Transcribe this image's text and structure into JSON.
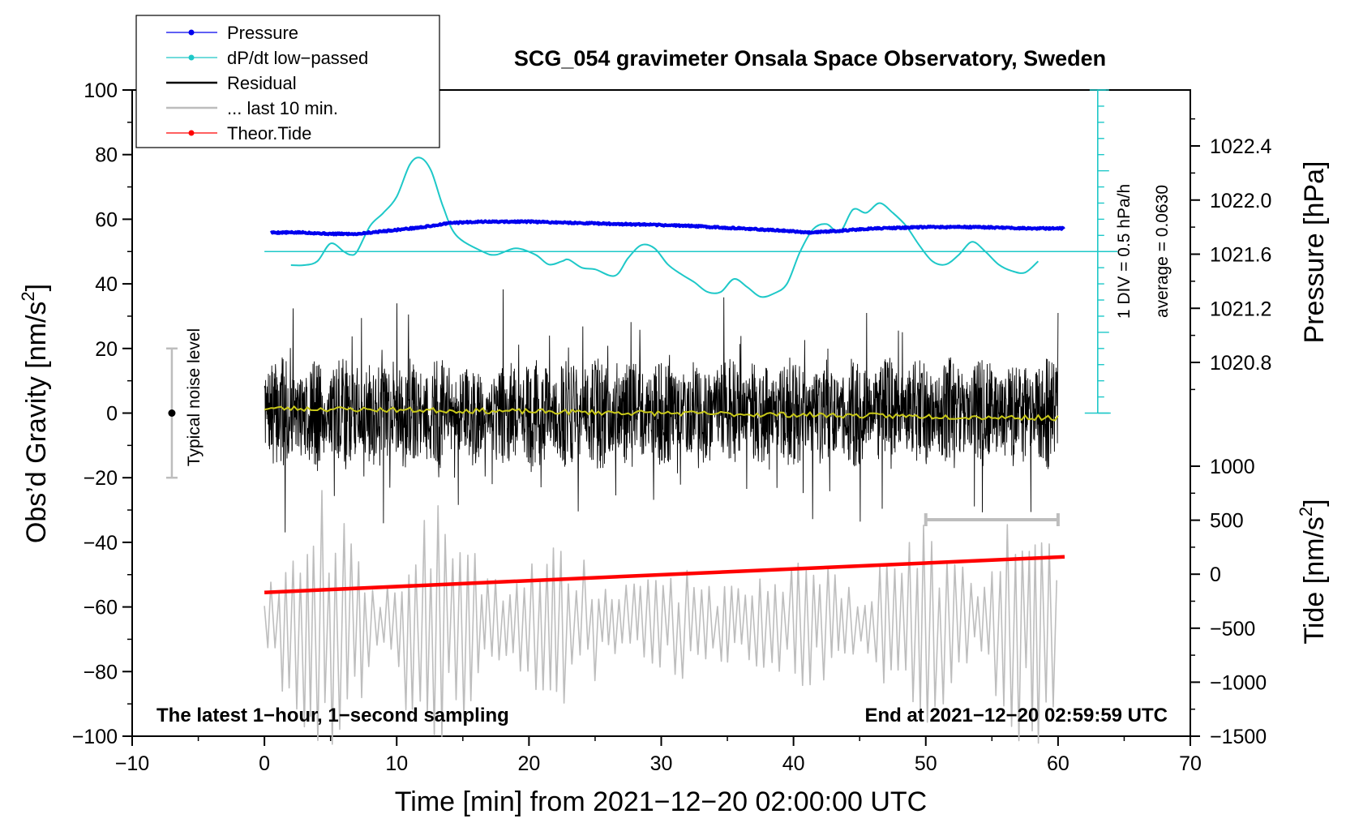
{
  "chart_data": {
    "type": "line",
    "title": "SCG_054 gravimeter Onsala Space Observatory, Sweden",
    "xlabel": "Time [min] from 2021−12−20 02:00:00 UTC",
    "ylabel_left": "Obs’d Gravity [nm/s",
    "ylabel_left_sup": "2",
    "ylabel_left_end": "]",
    "ylabel_right_top": "Pressure [hPa]",
    "ylabel_right_bottom": "Tide [nm/s",
    "ylabel_right_bottom_sup": "2",
    "ylabel_right_bottom_end": "]",
    "xlim": [
      -10,
      70
    ],
    "ylim": [
      -100,
      100
    ],
    "pressure_axis_range": [
      1020.4,
      1022.8
    ],
    "tide_axis_range": [
      -1500,
      1000
    ],
    "x_ticks": [
      "−10",
      "0",
      "10",
      "20",
      "30",
      "40",
      "50",
      "60",
      "70"
    ],
    "y_ticks": [
      "100",
      "80",
      "60",
      "40",
      "20",
      "0",
      "−20",
      "−40",
      "−60",
      "−80",
      "−100"
    ],
    "pressure_ticks": [
      "1022.4",
      "1022.0",
      "1021.6",
      "1021.2",
      "1020.8"
    ],
    "tide_ticks": [
      "1000",
      "500",
      "0",
      "−500",
      "−1000",
      "−1500"
    ],
    "legend": [
      {
        "label": "Pressure",
        "color": "#0000ee",
        "marker": true
      },
      {
        "label": "dP/dt low−passed",
        "color": "#1ec8c8",
        "marker": true
      },
      {
        "label": "Residual",
        "color": "#000000",
        "marker": false
      },
      {
        "label": "... last 10 min.",
        "color": "#bdbdbd",
        "marker": false
      },
      {
        "label": "Theor.Tide",
        "color": "#ff0000",
        "marker": true
      }
    ],
    "series": [
      {
        "name": "Pressure",
        "color": "#0000ee",
        "units": "hPa",
        "points": [
          [
            0.5,
            1021.76
          ],
          [
            3,
            1021.76
          ],
          [
            5,
            1021.75
          ],
          [
            7,
            1021.75
          ],
          [
            8,
            1021.76
          ],
          [
            10,
            1021.78
          ],
          [
            12,
            1021.8
          ],
          [
            14,
            1021.83
          ],
          [
            16,
            1021.84
          ],
          [
            20,
            1021.84
          ],
          [
            24,
            1021.83
          ],
          [
            28,
            1021.82
          ],
          [
            32,
            1021.81
          ],
          [
            36,
            1021.79
          ],
          [
            40,
            1021.77
          ],
          [
            41,
            1021.76
          ],
          [
            43,
            1021.77
          ],
          [
            46,
            1021.79
          ],
          [
            50,
            1021.8
          ],
          [
            54,
            1021.8
          ],
          [
            58,
            1021.79
          ],
          [
            60.5,
            1021.79
          ]
        ]
      },
      {
        "name": "dP/dt low−passed",
        "color": "#1ec8c8",
        "units": "hPa/h",
        "zero_line": 50,
        "points": [
          [
            2,
            45.8
          ],
          [
            3,
            45.8
          ],
          [
            4,
            47
          ],
          [
            5,
            52.5
          ],
          [
            6,
            50
          ],
          [
            6.5,
            49
          ],
          [
            7,
            50
          ],
          [
            8,
            58
          ],
          [
            9,
            62
          ],
          [
            10,
            67
          ],
          [
            11,
            77
          ],
          [
            11.8,
            79
          ],
          [
            12.6,
            75
          ],
          [
            13.5,
            64
          ],
          [
            14.5,
            55
          ],
          [
            16.5,
            50
          ],
          [
            17.5,
            49
          ],
          [
            19,
            51
          ],
          [
            20.5,
            49
          ],
          [
            21.5,
            46
          ],
          [
            22.5,
            47
          ],
          [
            23,
            47.5
          ],
          [
            24,
            45
          ],
          [
            25,
            44.5
          ],
          [
            26.5,
            42.5
          ],
          [
            27.5,
            48
          ],
          [
            28.5,
            52
          ],
          [
            29.5,
            51
          ],
          [
            30.5,
            46
          ],
          [
            31.5,
            43
          ],
          [
            32.5,
            40.5
          ],
          [
            33.5,
            37.5
          ],
          [
            34.5,
            37.5
          ],
          [
            35.5,
            41.5
          ],
          [
            36.5,
            39
          ],
          [
            37.5,
            36
          ],
          [
            38.5,
            37
          ],
          [
            39.5,
            40
          ],
          [
            40.5,
            50
          ],
          [
            41.5,
            57
          ],
          [
            42.5,
            58.5
          ],
          [
            43.5,
            56
          ],
          [
            44.5,
            63
          ],
          [
            45.5,
            62
          ],
          [
            46.5,
            65
          ],
          [
            47.5,
            62
          ],
          [
            48.5,
            58
          ],
          [
            49.5,
            52
          ],
          [
            50.5,
            47
          ],
          [
            51.5,
            46
          ],
          [
            52.5,
            49
          ],
          [
            53.5,
            53
          ],
          [
            54.5,
            50
          ],
          [
            55.5,
            46
          ],
          [
            56.5,
            44
          ],
          [
            57.5,
            43.5
          ],
          [
            58.5,
            47
          ]
        ]
      },
      {
        "name": "Residual",
        "color": "#000000",
        "units": "nm/s²",
        "x_range": [
          0,
          60
        ],
        "typical_amplitude": 14,
        "max_amplitude": 45,
        "seed": 7
      },
      {
        "name": "Residual (smoothed)",
        "color": "#c8c819",
        "units": "nm/s²",
        "points": [
          [
            0,
            1.5
          ],
          [
            10,
            1.0
          ],
          [
            20,
            0.5
          ],
          [
            30,
            0.0
          ],
          [
            40,
            -0.5
          ],
          [
            50,
            -1.0
          ],
          [
            60,
            -1.5
          ]
        ]
      },
      {
        "name": "... last 10 min.",
        "color": "#bdbdbd",
        "units": "nm/s² (expanded)",
        "x_range": [
          0,
          60
        ],
        "center": -65,
        "max_amplitude": 42,
        "seed": 11
      },
      {
        "name": "Theor.Tide",
        "color": "#ff0000",
        "units": "nm/s²",
        "points": [
          [
            0,
            -55.5
          ],
          [
            60.5,
            -44.5
          ]
        ]
      }
    ],
    "last10_bracket": {
      "x_start": 50,
      "x_end": 60,
      "y": -33
    },
    "noise_bar": {
      "x": -7,
      "y_min": -20,
      "y_max": 20,
      "y_dot": 0,
      "label": "Typical noise level"
    },
    "pressure_scale_bar": {
      "x": 63,
      "y_min": 0,
      "y_max": 100,
      "divisions": 20,
      "label1": "1 DIV = 0.5 hPa/h",
      "label2": "average = 0.0630"
    },
    "annotations": {
      "left_bottom": "The latest 1−hour, 1−second sampling",
      "right_bottom": "End at 2021−12−20 02:59:59 UTC"
    }
  }
}
